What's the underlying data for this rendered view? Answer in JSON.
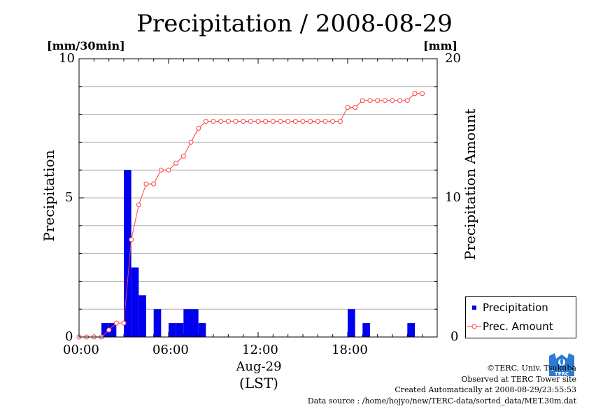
{
  "chart_data": {
    "type": "bar",
    "title": "Precipitation / 2008-08-29",
    "left_axis": {
      "unit": "[mm/30min]",
      "label": "Precipitation",
      "ylim": [
        0,
        10
      ],
      "ticks": [
        "0",
        "5",
        "10"
      ]
    },
    "right_axis": {
      "unit": "[mm]",
      "label": "Precipitation Amount",
      "ylim": [
        0,
        20
      ],
      "ticks": [
        "0",
        "10",
        "20"
      ]
    },
    "x_axis": {
      "date_label": "Aug-29",
      "tz_label": "(LST)",
      "ticks": [
        "00:00",
        "06:00",
        "12:00",
        "18:00"
      ],
      "range_hours": [
        0,
        24
      ]
    },
    "grid": true,
    "legend_position": "bottom-right",
    "series": [
      {
        "name": "Precipitation",
        "type": "bar",
        "color": "#0000ee",
        "x": [
          "00:00",
          "00:30",
          "01:00",
          "01:30",
          "02:00",
          "02:30",
          "03:00",
          "03:30",
          "04:00",
          "04:30",
          "05:00",
          "05:30",
          "06:00",
          "06:30",
          "07:00",
          "07:30",
          "08:00",
          "08:30",
          "09:00",
          "09:30",
          "10:00",
          "10:30",
          "11:00",
          "11:30",
          "12:00",
          "12:30",
          "13:00",
          "13:30",
          "14:00",
          "14:30",
          "15:00",
          "15:30",
          "16:00",
          "16:30",
          "17:00",
          "17:30",
          "18:00",
          "18:30",
          "19:00",
          "19:30",
          "20:00",
          "20:30",
          "21:00",
          "21:30",
          "22:00",
          "22:30",
          "23:00",
          "23:30"
        ],
        "values": [
          0,
          0,
          0,
          0.5,
          0.5,
          0,
          6,
          2.5,
          1.5,
          0,
          1,
          0,
          0.5,
          0.5,
          1,
          1,
          0.5,
          0,
          0,
          0,
          0,
          0,
          0,
          0,
          0,
          0,
          0,
          0,
          0,
          0,
          0,
          0,
          0,
          0,
          0,
          0,
          1,
          0,
          0.5,
          0,
          0,
          0,
          0,
          0,
          0.5,
          0,
          0,
          0
        ]
      },
      {
        "name": "Prec. Amount",
        "type": "line",
        "color": "#ff4040",
        "x": [
          "00:00",
          "00:30",
          "01:00",
          "01:30",
          "02:00",
          "02:30",
          "03:00",
          "03:30",
          "04:00",
          "04:30",
          "05:00",
          "05:30",
          "06:00",
          "06:30",
          "07:00",
          "07:30",
          "08:00",
          "08:30",
          "09:00",
          "09:30",
          "10:00",
          "10:30",
          "11:00",
          "11:30",
          "12:00",
          "12:30",
          "13:00",
          "13:30",
          "14:00",
          "14:30",
          "15:00",
          "15:30",
          "16:00",
          "16:30",
          "17:00",
          "17:30",
          "18:00",
          "18:30",
          "19:00",
          "19:30",
          "20:00",
          "20:30",
          "21:00",
          "21:30",
          "22:00",
          "22:30",
          "23:00"
        ],
        "values": [
          0,
          0,
          0,
          0,
          0.5,
          1,
          1,
          7,
          9.5,
          11,
          11,
          12,
          12,
          12.5,
          13,
          14,
          15,
          15.5,
          15.5,
          15.5,
          15.5,
          15.5,
          15.5,
          15.5,
          15.5,
          15.5,
          15.5,
          15.5,
          15.5,
          15.5,
          15.5,
          15.5,
          15.5,
          15.5,
          15.5,
          15.5,
          16.5,
          16.5,
          17,
          17,
          17,
          17,
          17,
          17,
          17,
          17.5,
          17.5
        ]
      }
    ]
  },
  "footer": {
    "copyright": "©TERC, Univ. Tsukuba",
    "observed": "Observed at TERC Tower site",
    "created": "Created Automatically at 2008-08-29/23:55:53",
    "source": "Data source : /home/hojyo/new/TERC-data/sorted_data/MET.30m.dat",
    "logo_text": "TERC"
  }
}
